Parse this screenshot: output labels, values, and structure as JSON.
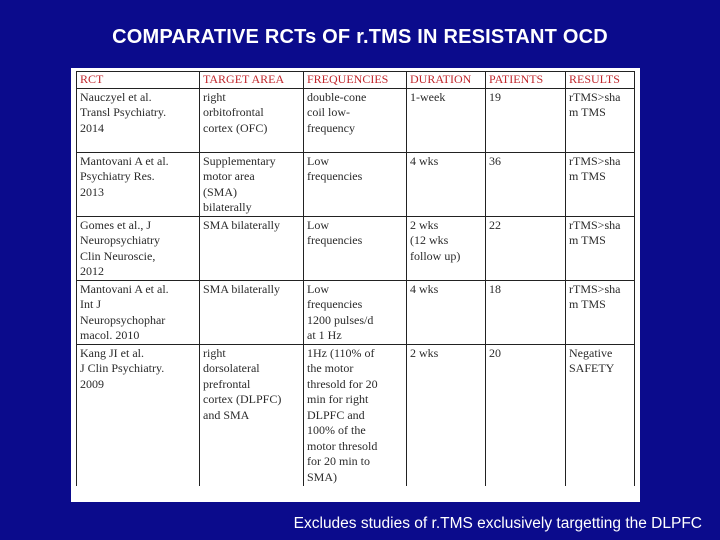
{
  "title": "COMPARATIVE RCTs OF r.TMS IN RESISTANT OCD",
  "table": {
    "headers": [
      "RCT",
      "TARGET AREA",
      "FREQUENCIES",
      "DURATION",
      "PATIENTS",
      "RESULTS"
    ],
    "rows": [
      {
        "rct": "Nauczyel et al.\nTransl Psychiatry.\n2014",
        "target_area": "right\norbitofrontal\ncortex (OFC)",
        "frequencies": "double-cone\ncoil low-\nfrequency",
        "duration": "1-week",
        "patients": "19",
        "results": "rTMS>sha\nm TMS"
      },
      {
        "rct": "Mantovani A et al.\nPsychiatry Res.\n2013",
        "target_area": "Supplementary\nmotor area\n(SMA)\nbilaterally",
        "frequencies": "Low\nfrequencies",
        "duration": "4 wks",
        "patients": "36",
        "results": "rTMS>sha\nm TMS"
      },
      {
        "rct": "Gomes et al., J\nNeuropsychiatry\nClin Neuroscie,\n2012",
        "target_area": "SMA bilaterally",
        "frequencies": "Low\nfrequencies",
        "duration": "2 wks\n(12 wks\nfollow up)",
        "patients": "22",
        "results": "rTMS>sha\nm TMS"
      },
      {
        "rct": "Mantovani A et al.\nInt J\nNeuropsychophar\nmacol. 2010",
        "target_area": "SMA bilaterally",
        "frequencies": "Low\nfrequencies\n1200 pulses/d\nat 1 Hz",
        "duration": "4 wks",
        "patients": "18",
        "results": "rTMS>sha\nm TMS"
      },
      {
        "rct": "Kang JI et al.\nJ Clin Psychiatry.\n2009",
        "target_area": "right\ndorsolateral\nprefrontal\ncortex (DLPFC)\nand SMA",
        "frequencies": "1Hz (110% of\nthe motor\nthresold for 20\nmin for right\nDLPFC and\n100% of the\nmotor thresold\nfor 20 min to\nSMA)",
        "duration": "2 wks",
        "patients": "20",
        "results": "Negative\nSAFETY"
      }
    ]
  },
  "footer": "Excludes studies of r.TMS exclusively targetting the DLPFC",
  "colors": {
    "background": "#0b0b8c",
    "header_text": "#c0282d",
    "title_text": "#ffffff"
  }
}
